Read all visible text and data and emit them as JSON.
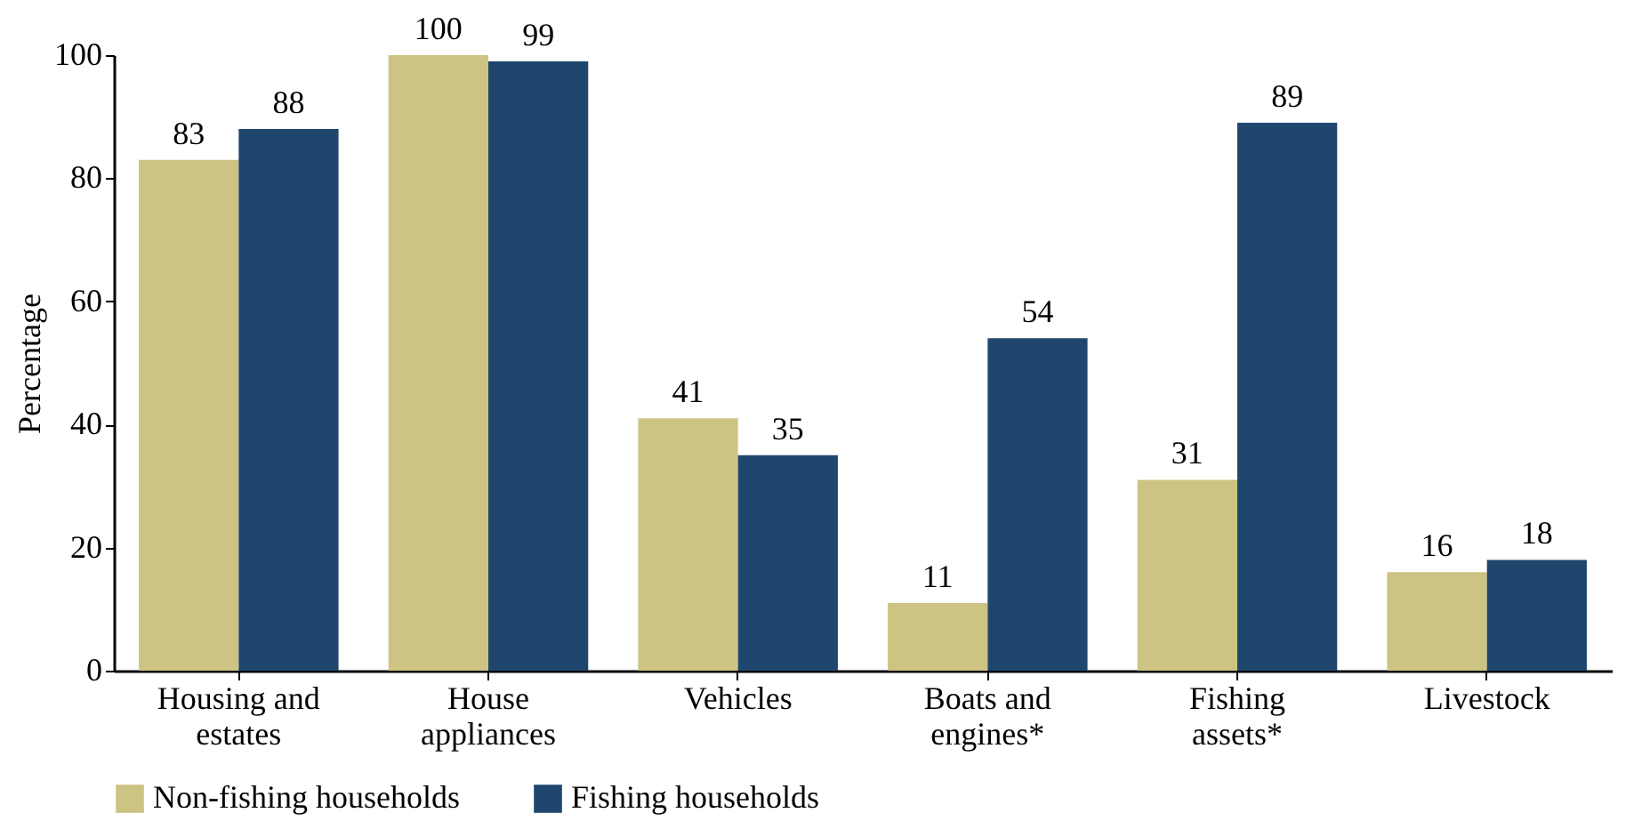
{
  "chart_data": {
    "type": "bar",
    "ylabel": "Percentage",
    "categories": [
      "Housing and estates",
      "House appliances",
      "Vehicles",
      "Boats and engines*",
      "Fishing assets*",
      "Livestock"
    ],
    "series": [
      {
        "name": "Non-fishing households",
        "color": "#cdc382",
        "values": [
          83,
          100,
          41,
          11,
          31,
          16
        ]
      },
      {
        "name": "Fishing households",
        "color": "#1f476e",
        "values": [
          88,
          99,
          35,
          54,
          89,
          18
        ]
      }
    ],
    "ylim": [
      0,
      100
    ],
    "yticks": [
      0,
      20,
      40,
      60,
      80,
      100
    ],
    "data_labels": true,
    "grid": false,
    "legend": "bottom"
  }
}
